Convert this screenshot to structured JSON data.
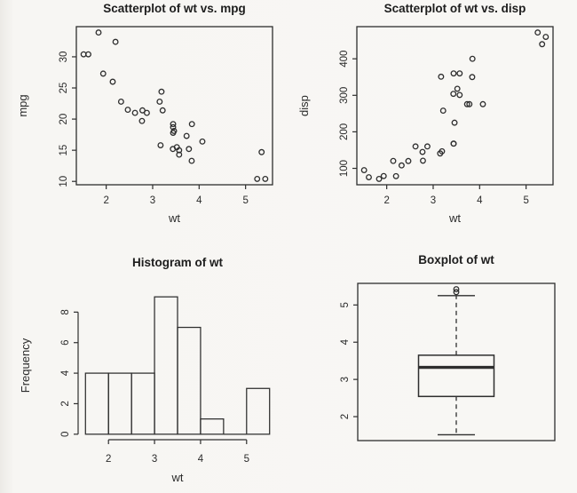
{
  "figure": {
    "background": "#f7f6f3",
    "ink": "#2e2e2e",
    "title_color": "#1d1d1d",
    "layout": "2x2 R base graphics panel"
  },
  "chart_data": [
    {
      "type": "scatter",
      "title": "Scatterplot of wt vs. mpg",
      "xlabel": "wt",
      "ylabel": "mpg",
      "xticks": [
        2,
        3,
        4,
        5
      ],
      "yticks": [
        10,
        15,
        20,
        25,
        30
      ],
      "xlim": [
        1.357,
        5.58
      ],
      "ylim": [
        9.46,
        34.84
      ],
      "x": [
        2.62,
        2.875,
        2.32,
        3.215,
        3.44,
        3.46,
        3.57,
        3.19,
        3.15,
        3.44,
        3.44,
        4.07,
        3.73,
        3.78,
        5.25,
        5.424,
        5.345,
        2.2,
        1.615,
        1.835,
        2.465,
        3.52,
        3.435,
        3.84,
        3.845,
        1.935,
        2.14,
        1.513,
        3.17,
        2.77,
        3.57,
        2.78
      ],
      "y": [
        21,
        21,
        22.8,
        21.4,
        18.7,
        18.1,
        14.3,
        24.4,
        22.8,
        19.2,
        17.8,
        16.4,
        17.3,
        15.2,
        10.4,
        10.4,
        14.7,
        32.4,
        30.4,
        33.9,
        21.5,
        15.5,
        15.2,
        13.3,
        19.2,
        27.3,
        26,
        30.4,
        15.8,
        19.7,
        15,
        21.4
      ]
    },
    {
      "type": "scatter",
      "title": "Scatterplot of wt vs. disp",
      "xlabel": "wt",
      "ylabel": "disp",
      "xticks": [
        2,
        3,
        4,
        5
      ],
      "yticks": [
        100,
        200,
        300,
        400
      ],
      "xlim": [
        1.357,
        5.58
      ],
      "ylim": [
        55.06,
        488.04
      ],
      "x": [
        2.62,
        2.875,
        2.32,
        3.215,
        3.44,
        3.46,
        3.57,
        3.19,
        3.15,
        3.44,
        3.44,
        4.07,
        3.73,
        3.78,
        5.25,
        5.424,
        5.345,
        2.2,
        1.615,
        1.835,
        2.465,
        3.52,
        3.435,
        3.84,
        3.845,
        1.935,
        2.14,
        1.513,
        3.17,
        2.77,
        3.57,
        2.78
      ],
      "y": [
        160,
        160,
        108,
        258,
        360,
        225,
        360,
        146.7,
        140.8,
        167.6,
        167.6,
        275.8,
        275.8,
        275.8,
        472,
        460,
        440,
        78.7,
        75.7,
        71.1,
        120.1,
        318,
        304,
        350,
        400,
        79,
        120.3,
        95.1,
        351,
        145,
        301,
        121
      ]
    },
    {
      "type": "histogram",
      "title": "Histogram of wt",
      "xlabel": "wt",
      "ylabel": "Frequency",
      "xticks": [
        2,
        3,
        4,
        5
      ],
      "yticks": [
        0,
        2,
        4,
        6,
        8
      ],
      "bin_edges": [
        1.5,
        2,
        2.5,
        3,
        3.5,
        4,
        4.5,
        5,
        5.5
      ],
      "counts": [
        4,
        4,
        4,
        9,
        7,
        1,
        0,
        3
      ],
      "ylim_max": 9
    },
    {
      "type": "boxplot",
      "title": "Boxplot of wt",
      "yticks": [
        2,
        3,
        4,
        5
      ],
      "stats": {
        "lower_whisker": 1.513,
        "q1": 2.5425,
        "median": 3.325,
        "q3": 3.65,
        "upper_whisker": 5.25
      },
      "outliers": [
        5.345,
        5.424
      ],
      "data_range": [
        1.513,
        5.424
      ]
    }
  ]
}
